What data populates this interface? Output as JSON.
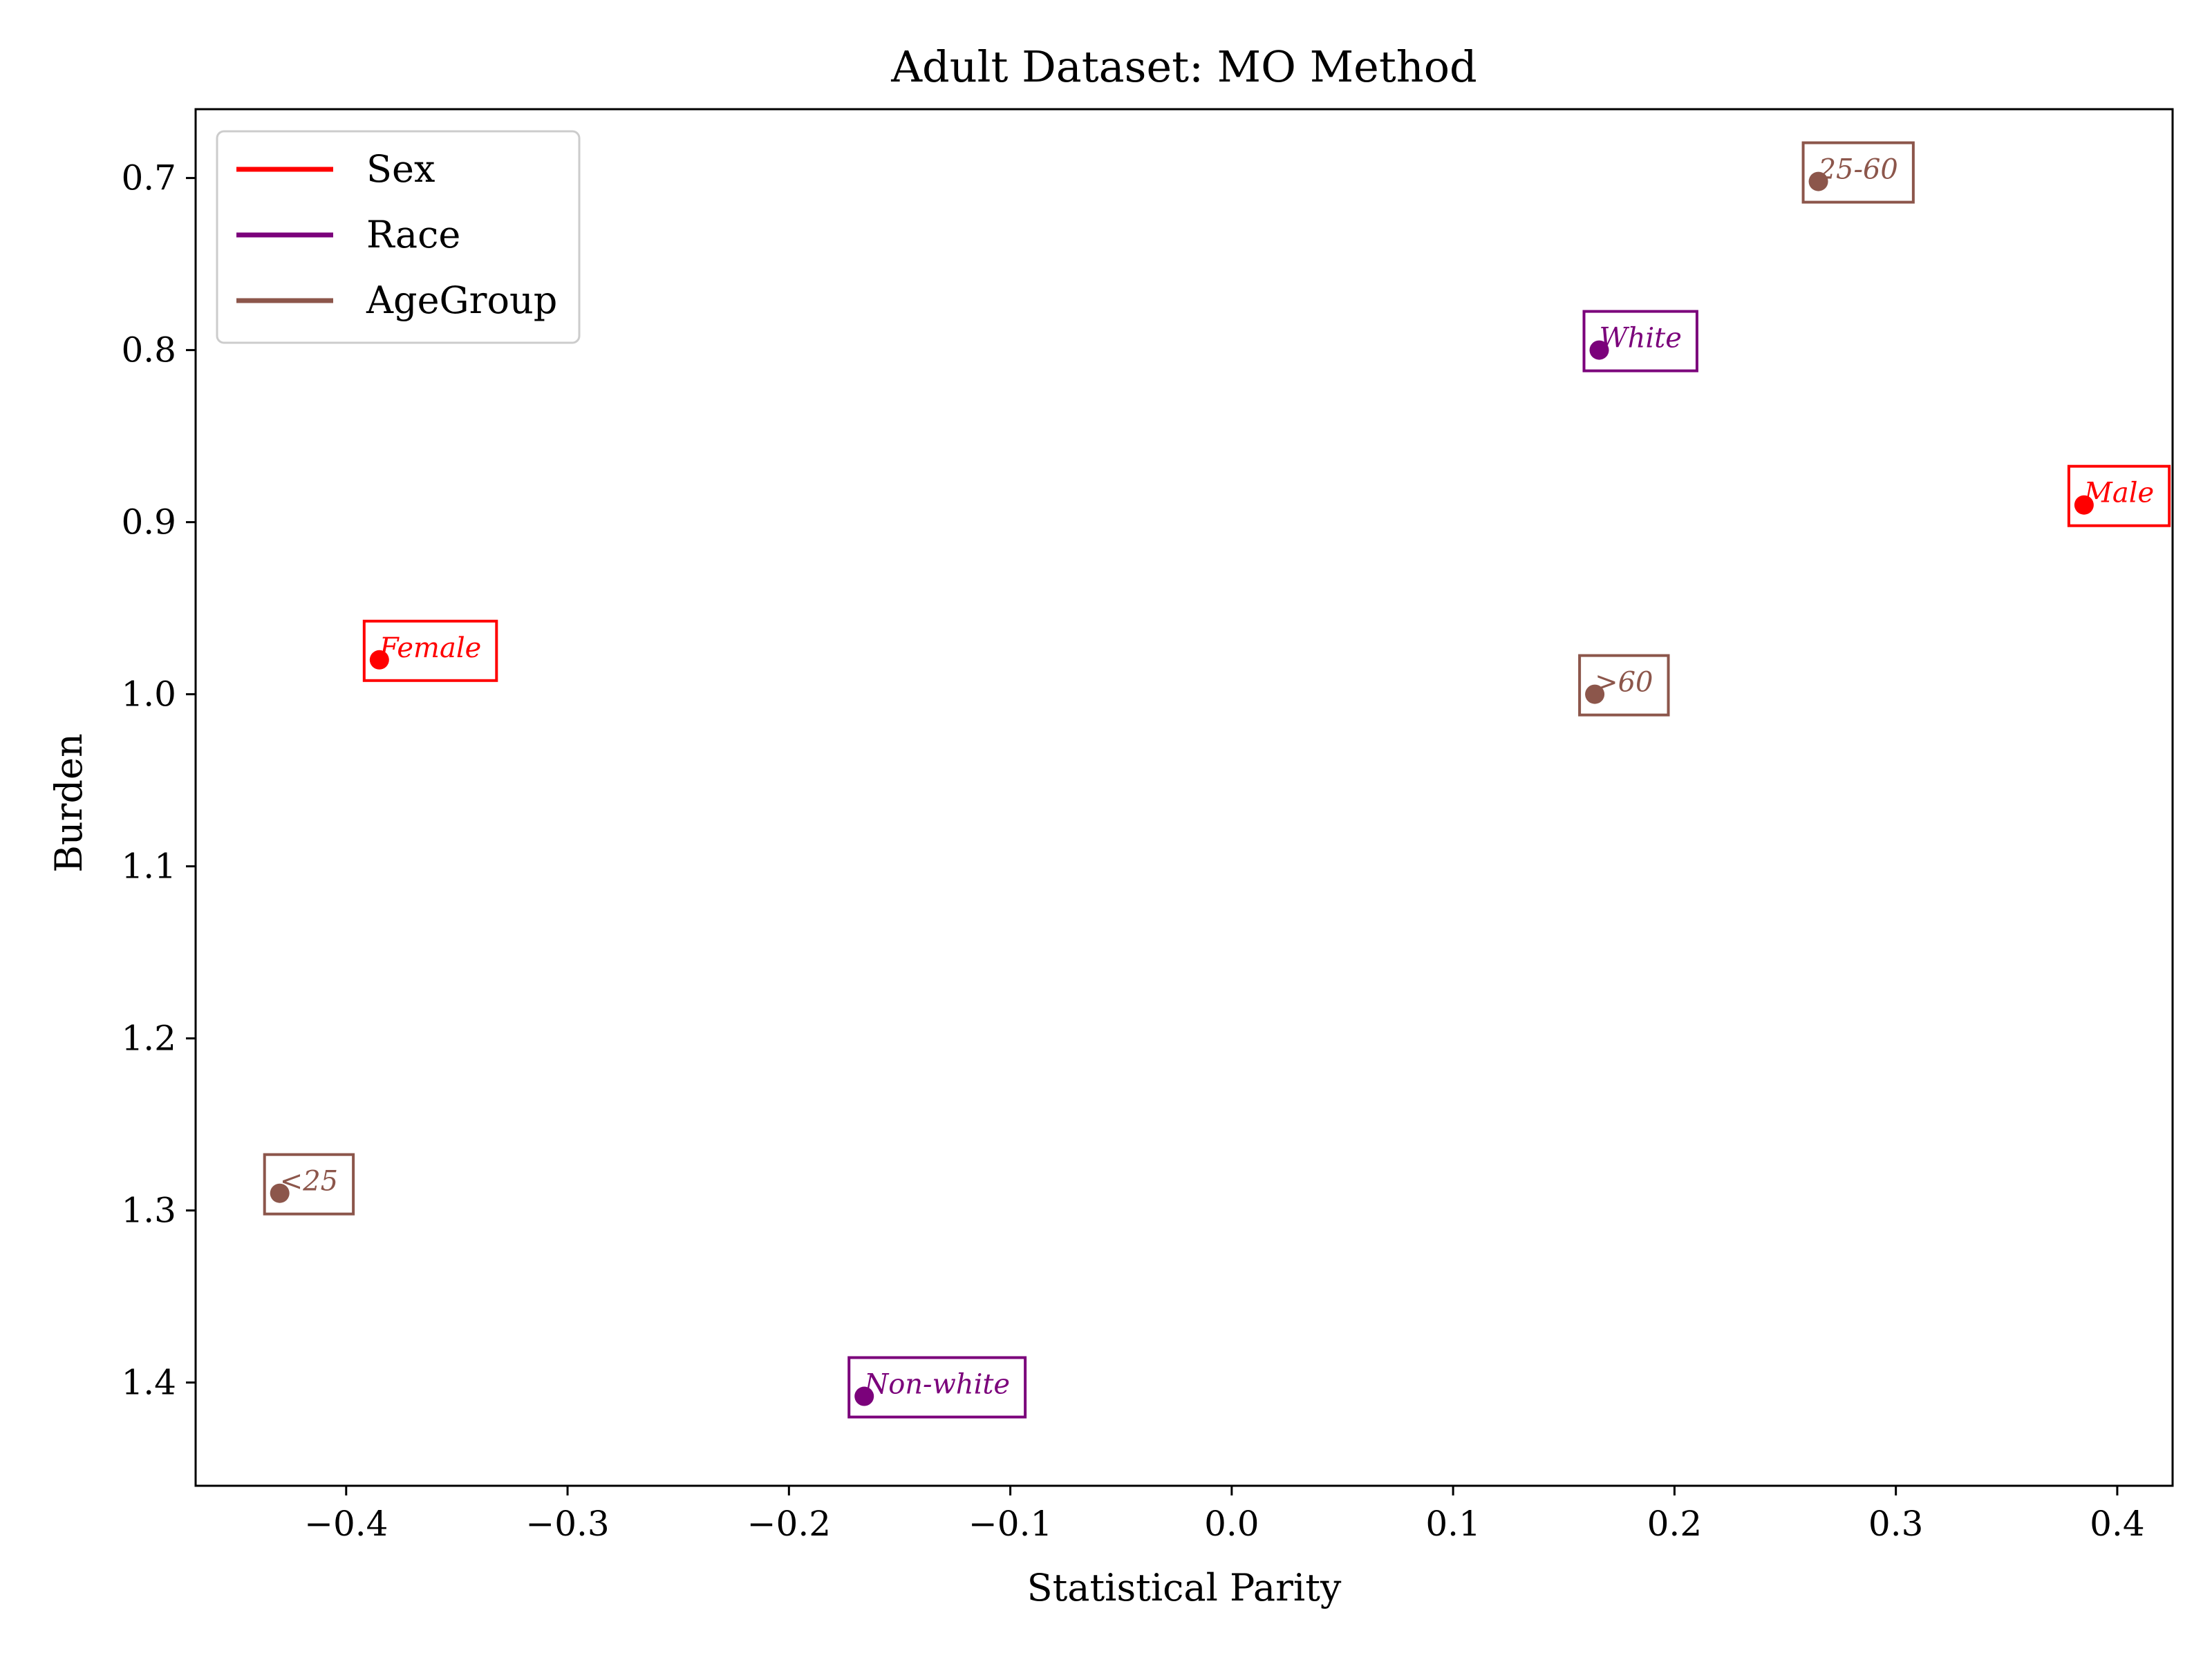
{
  "chart_data": {
    "type": "scatter",
    "title": "Adult Dataset: MO Method",
    "xlabel": "Statistical Parity",
    "ylabel": "Burden",
    "xlim": [
      -0.468,
      0.425
    ],
    "ylim": [
      1.46,
      0.66
    ],
    "y_inverted": true,
    "grid": false,
    "legend_placement": "top-left",
    "xticks": [
      -0.4,
      -0.3,
      -0.2,
      -0.1,
      0.0,
      0.1,
      0.2,
      0.3,
      0.4
    ],
    "xtick_labels": [
      "−0.4",
      "−0.3",
      "−0.2",
      "−0.1",
      "0.0",
      "0.1",
      "0.2",
      "0.3",
      "0.4"
    ],
    "yticks": [
      0.7,
      0.8,
      0.9,
      1.0,
      1.1,
      1.2,
      1.3,
      1.4
    ],
    "ytick_labels": [
      "0.7",
      "0.8",
      "0.9",
      "1.0",
      "1.1",
      "1.2",
      "1.3",
      "1.4"
    ],
    "series": [
      {
        "name": "Sex",
        "color": "#ff0000",
        "points": [
          {
            "label": "Male",
            "x": 0.385,
            "y": 0.89
          },
          {
            "label": "Female",
            "x": -0.385,
            "y": 0.98
          }
        ]
      },
      {
        "name": "Race",
        "color": "#7b027b",
        "points": [
          {
            "label": "White",
            "x": 0.166,
            "y": 0.8
          },
          {
            "label": "Non-white",
            "x": -0.166,
            "y": 1.408
          }
        ]
      },
      {
        "name": "AgeGroup",
        "color": "#8c564b",
        "points": [
          {
            "label": "25-60",
            "x": 0.265,
            "y": 0.702
          },
          {
            "label": ">60",
            "x": 0.164,
            "y": 1.0
          },
          {
            "label": "<25",
            "x": -0.43,
            "y": 1.29
          }
        ]
      }
    ]
  }
}
